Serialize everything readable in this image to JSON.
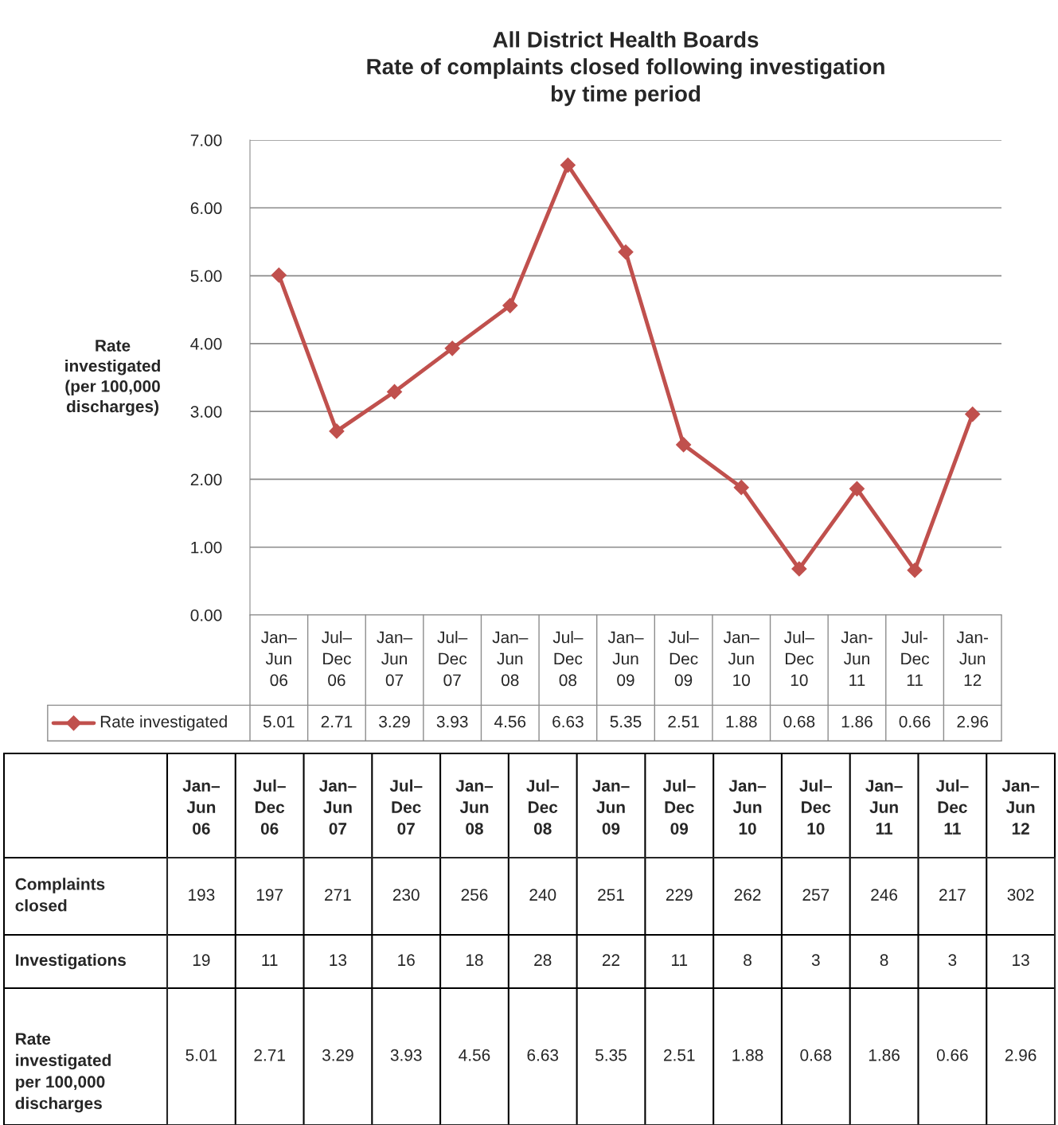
{
  "chart_data": [
    {
      "type": "line",
      "title": "All District Health Boards\nRate of complaints closed following investigation\nby time period",
      "ylabel": "Rate\ninvestigated\n(per 100,000\ndischarges)",
      "categories": [
        "Jan–\nJun\n06",
        "Jul–\nDec\n06",
        "Jan–\nJun\n07",
        "Jul–\nDec\n07",
        "Jan–\nJun\n08",
        "Jul–\nDec\n08",
        "Jan–\nJun\n09",
        "Jul–\nDec\n09",
        "Jan–\nJun\n10",
        "Jul–\nDec\n10",
        "Jan-\nJun\n11",
        "Jul-\nDec\n11",
        "Jan-\nJun\n12"
      ],
      "series": [
        {
          "name": "Rate investigated",
          "color": "#c0504d",
          "values": [
            5.01,
            2.71,
            3.29,
            3.93,
            4.56,
            6.63,
            5.35,
            2.51,
            1.88,
            0.68,
            1.86,
            0.66,
            2.96
          ]
        }
      ],
      "ylim": [
        0,
        7
      ],
      "yticks": [
        {
          "value": 0,
          "label": "0.00"
        },
        {
          "value": 1,
          "label": "1.00"
        },
        {
          "value": 2,
          "label": "2.00"
        },
        {
          "value": 3,
          "label": "3.00"
        },
        {
          "value": 4,
          "label": "4.00"
        },
        {
          "value": 5,
          "label": "5.00"
        },
        {
          "value": 6,
          "label": "6.00"
        },
        {
          "value": 7,
          "label": "7.00"
        }
      ],
      "grid": "y",
      "marker": "diamond",
      "line_style": "solid",
      "data_labels": true,
      "legend": "bottom"
    },
    {
      "type": "heatmap",
      "y_categories": [
        "Complaints\nclosed",
        "Investigations",
        "Rate\ninvestigated\nper 100,000\ndischarges"
      ],
      "cells": [
        [
          193,
          197,
          271,
          230,
          256,
          240,
          251,
          229,
          262,
          257,
          246,
          217,
          302
        ],
        [
          19,
          11,
          13,
          16,
          18,
          28,
          22,
          11,
          8,
          3,
          8,
          3,
          13
        ],
        [
          5.01,
          2.71,
          3.29,
          3.93,
          4.56,
          6.63,
          5.35,
          2.51,
          1.88,
          0.68,
          1.86,
          0.66,
          2.96
        ]
      ],
      "categories": [
        "Jan–\nJun\n06",
        "Jul–\nDec\n06",
        "Jan–\nJun\n07",
        "Jul–\nDec\n07",
        "Jan–\nJun\n08",
        "Jul–\nDec\n08",
        "Jan–\nJun\n09",
        "Jul–\nDec\n09",
        "Jan–\nJun\n10",
        "Jul–\nDec\n10",
        "Jan–\nJun\n11",
        "Jul–\nDec\n11",
        "Jan–\nJun\n12"
      ],
      "data_labels": true
    }
  ]
}
